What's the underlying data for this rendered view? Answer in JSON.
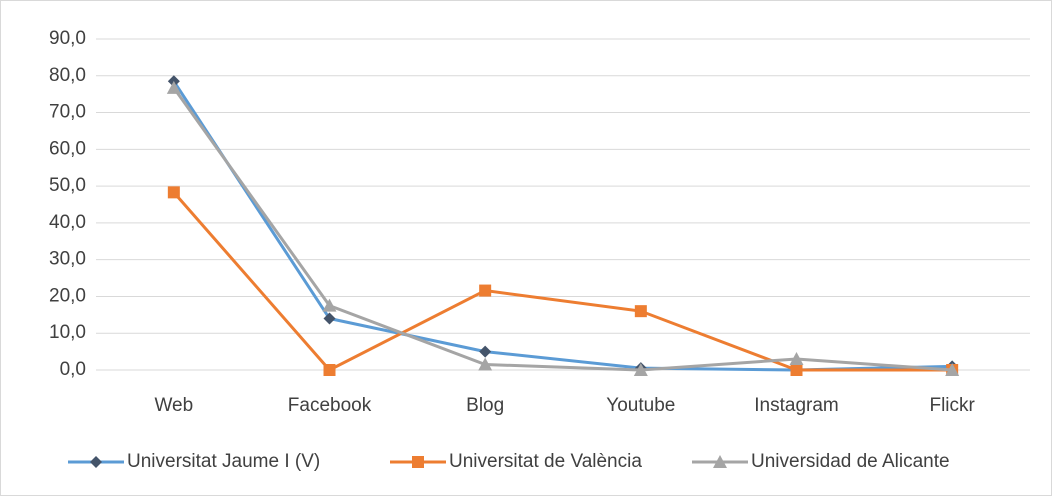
{
  "chart_data": {
    "type": "line",
    "categories": [
      "Web",
      "Facebook",
      "Blog",
      "Youtube",
      "Instagram",
      "Flickr"
    ],
    "series": [
      {
        "name": "Universitat Jaume I (V)",
        "color": "#5b9bd5",
        "marker_color": "#44546a",
        "marker": "diamond",
        "values": [
          78.5,
          14,
          5,
          0.5,
          0,
          1
        ]
      },
      {
        "name": "Universitat de València",
        "color": "#ed7d31",
        "marker_color": "#ed7d31",
        "marker": "square",
        "values": [
          48.3,
          0,
          21.6,
          16,
          0,
          0
        ]
      },
      {
        "name": "Universidad de Alicante",
        "color": "#a5a5a5",
        "marker_color": "#a5a5a5",
        "marker": "triangle",
        "values": [
          76.7,
          17.5,
          1.5,
          0,
          3,
          0
        ]
      }
    ],
    "ylim": [
      0,
      90
    ],
    "yticks": [
      {
        "value": 0,
        "label": "0,0"
      },
      {
        "value": 10,
        "label": "10,0"
      },
      {
        "value": 20,
        "label": "20,0"
      },
      {
        "value": 30,
        "label": "30,0"
      },
      {
        "value": 40,
        "label": "40,0"
      },
      {
        "value": 50,
        "label": "50,0"
      },
      {
        "value": 60,
        "label": "60,0"
      },
      {
        "value": 70,
        "label": "70,0"
      },
      {
        "value": 80,
        "label": "80,0"
      },
      {
        "value": 90,
        "label": "90,0"
      }
    ],
    "grid": true,
    "legend": "bottom"
  }
}
